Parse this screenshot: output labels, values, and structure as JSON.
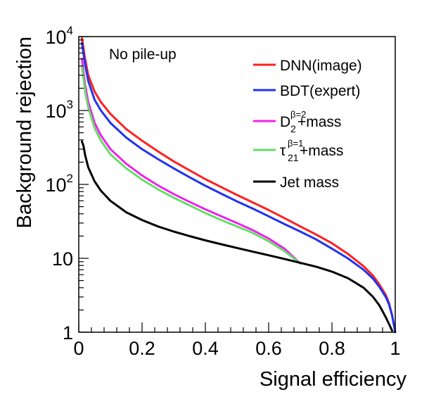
{
  "chart_data": {
    "type": "line",
    "xlabel": "Signal efficiency",
    "ylabel": "Background rejection",
    "xlim": [
      0,
      1
    ],
    "ylim": [
      1,
      10000
    ],
    "yscale": "log",
    "grid": false,
    "legend_position": "top-right",
    "x_ticks": [
      {
        "value": 0,
        "label": "0"
      },
      {
        "value": 0.2,
        "label": "0.2"
      },
      {
        "value": 0.4,
        "label": "0.4"
      },
      {
        "value": 0.6,
        "label": "0.6"
      },
      {
        "value": 0.8,
        "label": "0.8"
      },
      {
        "value": 1,
        "label": "1"
      }
    ],
    "y_ticks": [
      {
        "value": 1,
        "base": "1",
        "exp": ""
      },
      {
        "value": 10,
        "base": "10",
        "exp": ""
      },
      {
        "value": 100,
        "base": "10",
        "exp": "2"
      },
      {
        "value": 1000,
        "base": "10",
        "exp": "3"
      },
      {
        "value": 10000,
        "base": "10",
        "exp": "4"
      }
    ],
    "annotation": "No pile-up",
    "series": [
      {
        "name": "DNN(image)",
        "legend_main": "DNN(image)",
        "legend_sup": "",
        "legend_sub": "",
        "legend_rest": "",
        "color": "#ff2020",
        "points": [
          [
            0.01,
            9500
          ],
          [
            0.02,
            5000
          ],
          [
            0.03,
            3000
          ],
          [
            0.05,
            1800
          ],
          [
            0.07,
            1300
          ],
          [
            0.1,
            900
          ],
          [
            0.15,
            560
          ],
          [
            0.2,
            390
          ],
          [
            0.25,
            280
          ],
          [
            0.3,
            205
          ],
          [
            0.35,
            155
          ],
          [
            0.4,
            118
          ],
          [
            0.45,
            92
          ],
          [
            0.5,
            72
          ],
          [
            0.55,
            57
          ],
          [
            0.6,
            45
          ],
          [
            0.65,
            35
          ],
          [
            0.7,
            27
          ],
          [
            0.75,
            21
          ],
          [
            0.8,
            16
          ],
          [
            0.85,
            11.5
          ],
          [
            0.9,
            7.8
          ],
          [
            0.93,
            5.8
          ],
          [
            0.95,
            4.4
          ],
          [
            0.97,
            3.2
          ],
          [
            0.98,
            2.5
          ],
          [
            0.99,
            1.7
          ],
          [
            1.0,
            1.0
          ]
        ]
      },
      {
        "name": "BDT(expert)",
        "legend_main": "BDT(expert)",
        "legend_sup": "",
        "legend_sub": "",
        "legend_rest": "",
        "color": "#2233ee",
        "points": [
          [
            0.01,
            8200
          ],
          [
            0.02,
            4200
          ],
          [
            0.03,
            2500
          ],
          [
            0.05,
            1400
          ],
          [
            0.07,
            1000
          ],
          [
            0.1,
            680
          ],
          [
            0.15,
            430
          ],
          [
            0.2,
            300
          ],
          [
            0.25,
            220
          ],
          [
            0.3,
            165
          ],
          [
            0.35,
            125
          ],
          [
            0.4,
            96
          ],
          [
            0.45,
            75
          ],
          [
            0.5,
            59
          ],
          [
            0.55,
            47
          ],
          [
            0.6,
            37
          ],
          [
            0.65,
            29
          ],
          [
            0.7,
            23
          ],
          [
            0.75,
            18
          ],
          [
            0.8,
            13.5
          ],
          [
            0.85,
            10
          ],
          [
            0.9,
            7
          ],
          [
            0.93,
            5.3
          ],
          [
            0.95,
            4.1
          ],
          [
            0.97,
            3.0
          ],
          [
            0.98,
            2.4
          ],
          [
            0.99,
            1.7
          ],
          [
            1.0,
            1.0
          ]
        ]
      },
      {
        "name": "D2β=2+mass",
        "legend_main": "D",
        "legend_sup": "β=2",
        "legend_sub": "2",
        "legend_rest": "+mass",
        "color": "#ee22ee",
        "points": [
          [
            0.01,
            5000
          ],
          [
            0.02,
            2200
          ],
          [
            0.03,
            1300
          ],
          [
            0.05,
            680
          ],
          [
            0.07,
            460
          ],
          [
            0.1,
            300
          ],
          [
            0.15,
            190
          ],
          [
            0.2,
            132
          ],
          [
            0.25,
            97
          ],
          [
            0.3,
            74
          ],
          [
            0.35,
            58
          ],
          [
            0.4,
            46
          ],
          [
            0.45,
            37
          ],
          [
            0.5,
            30
          ],
          [
            0.55,
            24
          ],
          [
            0.6,
            18.5
          ],
          [
            0.65,
            13.5
          ],
          [
            0.7,
            8.5
          ]
        ]
      },
      {
        "name": "τ21β=1+mass",
        "legend_main": "τ",
        "legend_sup": "β=1",
        "legend_sub": "21",
        "legend_rest": "+mass",
        "color": "#66dd66",
        "points": [
          [
            0.01,
            4000
          ],
          [
            0.02,
            1800
          ],
          [
            0.03,
            1100
          ],
          [
            0.05,
            580
          ],
          [
            0.07,
            390
          ],
          [
            0.1,
            255
          ],
          [
            0.15,
            165
          ],
          [
            0.2,
            116
          ],
          [
            0.25,
            86
          ],
          [
            0.3,
            66
          ],
          [
            0.35,
            52
          ],
          [
            0.4,
            41
          ],
          [
            0.45,
            33
          ],
          [
            0.5,
            27
          ],
          [
            0.55,
            22
          ],
          [
            0.6,
            17
          ],
          [
            0.65,
            12.5
          ],
          [
            0.7,
            8.5
          ]
        ]
      },
      {
        "name": "Jet mass",
        "legend_main": "Jet mass",
        "legend_sup": "",
        "legend_sub": "",
        "legend_rest": "",
        "color": "#000000",
        "points": [
          [
            0.01,
            380
          ],
          [
            0.015,
            330
          ],
          [
            0.02,
            250
          ],
          [
            0.03,
            170
          ],
          [
            0.05,
            110
          ],
          [
            0.07,
            82
          ],
          [
            0.1,
            60
          ],
          [
            0.15,
            42
          ],
          [
            0.2,
            33
          ],
          [
            0.25,
            27
          ],
          [
            0.3,
            23
          ],
          [
            0.35,
            20
          ],
          [
            0.4,
            17.5
          ],
          [
            0.45,
            15.5
          ],
          [
            0.5,
            13.8
          ],
          [
            0.55,
            12.3
          ],
          [
            0.6,
            11
          ],
          [
            0.65,
            9.8
          ],
          [
            0.7,
            8.7
          ],
          [
            0.75,
            7.7
          ],
          [
            0.8,
            6.6
          ],
          [
            0.85,
            5.4
          ],
          [
            0.9,
            4.0
          ],
          [
            0.93,
            3.0
          ],
          [
            0.95,
            2.3
          ],
          [
            0.97,
            1.6
          ],
          [
            0.98,
            1.3
          ],
          [
            0.99,
            1.05
          ]
        ]
      }
    ]
  }
}
